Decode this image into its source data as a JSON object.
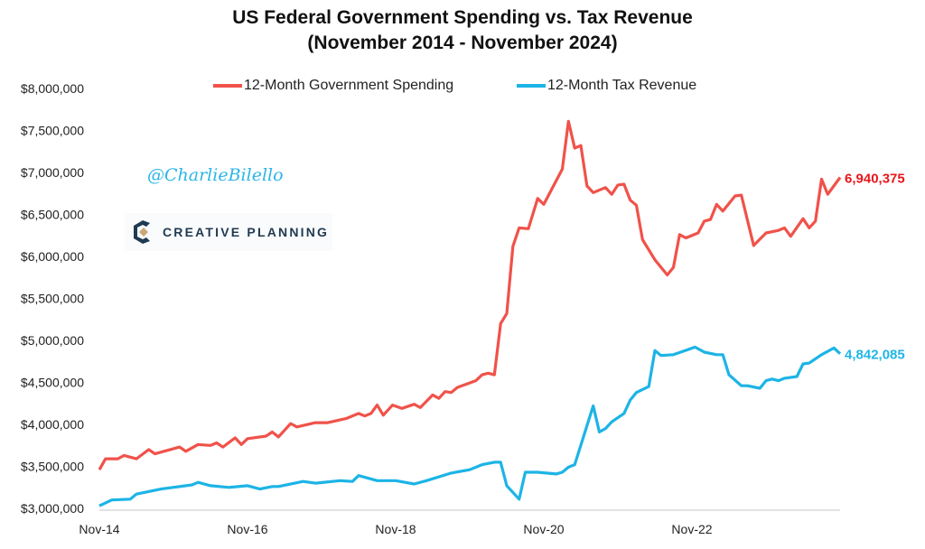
{
  "chart_data": {
    "type": "line",
    "title": "US Federal Government Spending vs. Tax Revenue",
    "subtitle": "(November 2014 - November 2024)",
    "xlabel": "",
    "ylabel": "",
    "x_unit": "months since Nov-14",
    "xlim": [
      0,
      120
    ],
    "ylim": [
      3000000,
      8000000
    ],
    "x_ticks": [
      {
        "m": 0,
        "label": "Nov-14"
      },
      {
        "m": 24,
        "label": "Nov-16"
      },
      {
        "m": 48,
        "label": "Nov-18"
      },
      {
        "m": 72,
        "label": "Nov-20"
      },
      {
        "m": 96,
        "label": "Nov-22"
      }
    ],
    "y_ticks": [
      {
        "v": 3000000,
        "label": "$3,000,000"
      },
      {
        "v": 3500000,
        "label": "$3,500,000"
      },
      {
        "v": 4000000,
        "label": "$4,000,000"
      },
      {
        "v": 4500000,
        "label": "$4,500,000"
      },
      {
        "v": 5000000,
        "label": "$5,000,000"
      },
      {
        "v": 5500000,
        "label": "$5,500,000"
      },
      {
        "v": 6000000,
        "label": "$6,000,000"
      },
      {
        "v": 6500000,
        "label": "$6,500,000"
      },
      {
        "v": 7000000,
        "label": "$7,000,000"
      },
      {
        "v": 7500000,
        "label": "$7,500,000"
      },
      {
        "v": 8000000,
        "label": "$8,000,000"
      }
    ],
    "grid": false,
    "legend_placement": "top-center",
    "series": [
      {
        "name": "12-Month Government Spending",
        "color": "#f0524a",
        "end_label": "6,940,375",
        "end_label_color": "#e8161b",
        "x": [
          0,
          1,
          3,
          4,
          6,
          8,
          9,
          13,
          14,
          16,
          18,
          19,
          20,
          22,
          23,
          24,
          27,
          28,
          29,
          31,
          32,
          35,
          37,
          40,
          42,
          43,
          44,
          45,
          46,
          47.5,
          49,
          51,
          52,
          54,
          55,
          56,
          57,
          58,
          61,
          62,
          63,
          64,
          65,
          66,
          67,
          68,
          69.5,
          71,
          72,
          75,
          76,
          77,
          78,
          79,
          80,
          82,
          83,
          84,
          85,
          86,
          87,
          88,
          90,
          92,
          93,
          94,
          95,
          97,
          98,
          99,
          100,
          101,
          103,
          104,
          106,
          108,
          110,
          111,
          112,
          114,
          115,
          116,
          117,
          118,
          120
        ],
        "values": [
          3460000,
          3590000,
          3590000,
          3630000,
          3590000,
          3700000,
          3650000,
          3730000,
          3680000,
          3760000,
          3750000,
          3780000,
          3730000,
          3840000,
          3760000,
          3830000,
          3860000,
          3910000,
          3850000,
          4010000,
          3970000,
          4020000,
          4020000,
          4070000,
          4130000,
          4100000,
          4130000,
          4230000,
          4110000,
          4230000,
          4190000,
          4240000,
          4200000,
          4350000,
          4310000,
          4390000,
          4380000,
          4440000,
          4520000,
          4590000,
          4610000,
          4590000,
          5200000,
          5320000,
          6120000,
          6340000,
          6330000,
          6690000,
          6620000,
          7040000,
          7610000,
          7290000,
          7320000,
          6840000,
          6760000,
          6820000,
          6740000,
          6850000,
          6860000,
          6670000,
          6610000,
          6200000,
          5960000,
          5780000,
          5870000,
          6260000,
          6220000,
          6280000,
          6420000,
          6440000,
          6620000,
          6540000,
          6720000,
          6730000,
          6130000,
          6280000,
          6310000,
          6340000,
          6240000,
          6450000,
          6340000,
          6420000,
          6920000,
          6740000,
          6940375
        ]
      },
      {
        "name": "12-Month Tax Revenue",
        "color": "#1cb4e6",
        "end_label": "4,842,085",
        "end_label_color": "#1fb6e6",
        "x": [
          0,
          2,
          5,
          6,
          10,
          15,
          16,
          18,
          21,
          24,
          26,
          28,
          29,
          33,
          35,
          39,
          41,
          42,
          45,
          48,
          51,
          53,
          57,
          60,
          62,
          64,
          65,
          66,
          68,
          69,
          71,
          74,
          75,
          76,
          77,
          80,
          81,
          82,
          83,
          85,
          86,
          87,
          89,
          90,
          91,
          93,
          96.5,
          98,
          100,
          101,
          102,
          104,
          105,
          107,
          108,
          109,
          110,
          111,
          113,
          114,
          115,
          117,
          119,
          120
        ],
        "values": [
          3030000,
          3100000,
          3110000,
          3170000,
          3230000,
          3280000,
          3310000,
          3270000,
          3250000,
          3270000,
          3230000,
          3260000,
          3260000,
          3320000,
          3300000,
          3330000,
          3320000,
          3390000,
          3330000,
          3330000,
          3290000,
          3330000,
          3420000,
          3460000,
          3520000,
          3550000,
          3550000,
          3270000,
          3110000,
          3430000,
          3430000,
          3410000,
          3430000,
          3490000,
          3520000,
          4220000,
          3910000,
          3950000,
          4030000,
          4130000,
          4290000,
          4380000,
          4450000,
          4880000,
          4820000,
          4830000,
          4920000,
          4860000,
          4830000,
          4830000,
          4590000,
          4460000,
          4460000,
          4430000,
          4520000,
          4540000,
          4520000,
          4550000,
          4570000,
          4720000,
          4730000,
          4830000,
          4910000,
          4842085
        ]
      }
    ]
  },
  "watermark": "@CharlieBilello",
  "logo_text": "CREATIVE PLANNING"
}
